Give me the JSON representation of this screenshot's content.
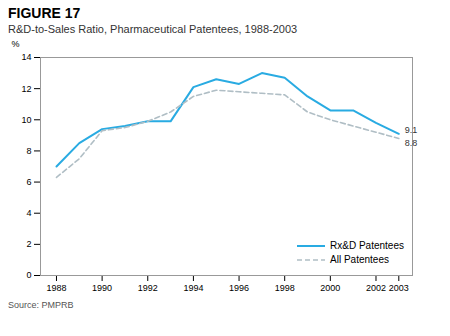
{
  "chart_data": {
    "type": "line",
    "title": "FIGURE 17",
    "subtitle": "R&D-to-Sales Ratio, Pharmaceutical Patentees, 1988-2003",
    "y_label": "%",
    "caption": "Source: PMPRB",
    "x": [
      1988,
      1989,
      1990,
      1991,
      1992,
      1993,
      1994,
      1995,
      1996,
      1997,
      1998,
      1999,
      2000,
      2001,
      2002,
      2003
    ],
    "series": [
      {
        "name": "Rx&D Patentees",
        "color": "#29abe2",
        "line_style": "solid",
        "values": [
          7.0,
          8.5,
          9.4,
          9.6,
          9.9,
          9.9,
          12.1,
          12.6,
          12.3,
          13.0,
          12.7,
          11.5,
          10.6,
          10.6,
          9.8,
          9.1
        ]
      },
      {
        "name": "All Patentees",
        "color": "#b0bec5",
        "line_style": "dashed",
        "values": [
          6.3,
          7.5,
          9.3,
          9.5,
          9.9,
          10.5,
          11.5,
          11.9,
          11.8,
          11.7,
          11.6,
          10.5,
          10.0,
          9.6,
          9.2,
          8.8
        ]
      }
    ],
    "annotations": [
      {
        "text": "9.1",
        "x": 2003,
        "y": 9.1
      },
      {
        "text": "8.8",
        "x": 2003,
        "y": 8.8
      }
    ],
    "xlim": [
      1987.3,
      2003.6
    ],
    "xticks": [
      1988,
      1990,
      1992,
      1994,
      1996,
      1998,
      2000,
      2002,
      2003
    ],
    "ylim": [
      0,
      14
    ],
    "yticks": [
      0,
      2,
      4,
      6,
      8,
      10,
      12,
      14
    ],
    "grid": false,
    "legend": "lower right"
  }
}
